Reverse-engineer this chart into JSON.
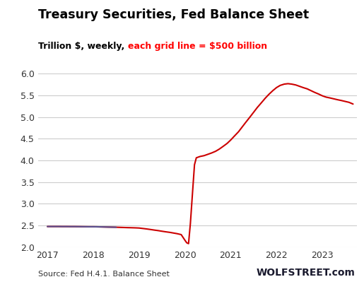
{
  "title": "Treasury Securities, Fed Balance Sheet",
  "subtitle_black": "Trillion $, weekly, ",
  "subtitle_red": "each grid line = $500 billion",
  "source": "Source: Fed H.4.1. Balance Sheet",
  "watermark": "WOLFSTREET.com",
  "ylim": [
    2.0,
    6.0
  ],
  "yticks": [
    2.0,
    2.5,
    3.0,
    3.5,
    4.0,
    4.5,
    5.0,
    5.5,
    6.0
  ],
  "xlim_start": 2016.8,
  "xlim_end": 2023.75,
  "line_color": "#cc0000",
  "line_color_early": "#5a5090",
  "grid_color": "#cccccc",
  "bg_color": "#ffffff",
  "dark_end_x": 2018.5,
  "data": [
    [
      2017.0,
      2.475
    ],
    [
      2017.08,
      2.475
    ],
    [
      2017.17,
      2.475
    ],
    [
      2017.25,
      2.475
    ],
    [
      2017.33,
      2.474
    ],
    [
      2017.42,
      2.474
    ],
    [
      2017.5,
      2.473
    ],
    [
      2017.58,
      2.473
    ],
    [
      2017.67,
      2.472
    ],
    [
      2017.75,
      2.471
    ],
    [
      2017.83,
      2.47
    ],
    [
      2017.92,
      2.469
    ],
    [
      2018.0,
      2.469
    ],
    [
      2018.08,
      2.468
    ],
    [
      2018.17,
      2.466
    ],
    [
      2018.25,
      2.464
    ],
    [
      2018.33,
      2.462
    ],
    [
      2018.42,
      2.46
    ],
    [
      2018.5,
      2.458
    ],
    [
      2018.58,
      2.455
    ],
    [
      2018.67,
      2.452
    ],
    [
      2018.75,
      2.449
    ],
    [
      2018.83,
      2.447
    ],
    [
      2018.92,
      2.444
    ],
    [
      2019.0,
      2.44
    ],
    [
      2019.08,
      2.43
    ],
    [
      2019.17,
      2.418
    ],
    [
      2019.25,
      2.406
    ],
    [
      2019.33,
      2.393
    ],
    [
      2019.42,
      2.38
    ],
    [
      2019.5,
      2.366
    ],
    [
      2019.58,
      2.353
    ],
    [
      2019.67,
      2.34
    ],
    [
      2019.75,
      2.325
    ],
    [
      2019.83,
      2.31
    ],
    [
      2019.92,
      2.288
    ],
    [
      2020.0,
      2.16
    ],
    [
      2020.04,
      2.1
    ],
    [
      2020.08,
      2.08
    ],
    [
      2020.12,
      2.54
    ],
    [
      2020.17,
      3.3
    ],
    [
      2020.21,
      3.9
    ],
    [
      2020.25,
      4.06
    ],
    [
      2020.33,
      4.09
    ],
    [
      2020.42,
      4.11
    ],
    [
      2020.5,
      4.14
    ],
    [
      2020.58,
      4.17
    ],
    [
      2020.67,
      4.21
    ],
    [
      2020.75,
      4.26
    ],
    [
      2020.83,
      4.32
    ],
    [
      2020.92,
      4.39
    ],
    [
      2021.0,
      4.47
    ],
    [
      2021.08,
      4.56
    ],
    [
      2021.17,
      4.66
    ],
    [
      2021.25,
      4.77
    ],
    [
      2021.33,
      4.88
    ],
    [
      2021.42,
      5.0
    ],
    [
      2021.5,
      5.11
    ],
    [
      2021.58,
      5.22
    ],
    [
      2021.67,
      5.33
    ],
    [
      2021.75,
      5.43
    ],
    [
      2021.83,
      5.52
    ],
    [
      2021.92,
      5.61
    ],
    [
      2022.0,
      5.68
    ],
    [
      2022.08,
      5.73
    ],
    [
      2022.17,
      5.76
    ],
    [
      2022.25,
      5.77
    ],
    [
      2022.33,
      5.76
    ],
    [
      2022.42,
      5.74
    ],
    [
      2022.5,
      5.71
    ],
    [
      2022.58,
      5.68
    ],
    [
      2022.67,
      5.65
    ],
    [
      2022.75,
      5.61
    ],
    [
      2022.83,
      5.57
    ],
    [
      2022.92,
      5.53
    ],
    [
      2023.0,
      5.49
    ],
    [
      2023.08,
      5.46
    ],
    [
      2023.17,
      5.44
    ],
    [
      2023.25,
      5.42
    ],
    [
      2023.33,
      5.4
    ],
    [
      2023.42,
      5.38
    ],
    [
      2023.5,
      5.36
    ],
    [
      2023.58,
      5.34
    ],
    [
      2023.67,
      5.3
    ]
  ]
}
